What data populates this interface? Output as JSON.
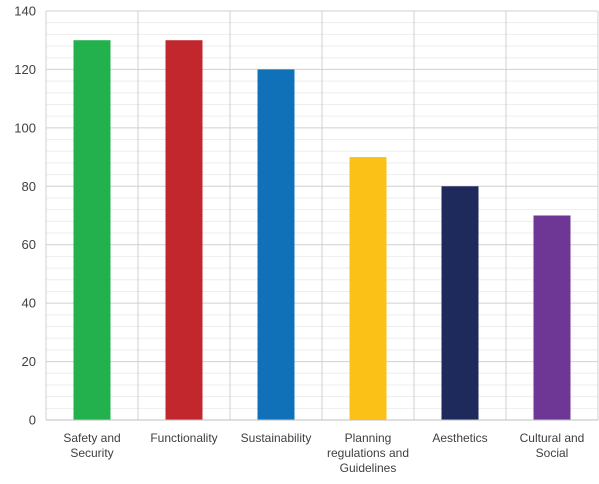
{
  "chart_data": {
    "type": "bar",
    "categories": [
      "Safety and Security",
      "Functionality",
      "Sustainability",
      "Planning regulations and Guidelines",
      "Aesthetics",
      "Cultural and Social"
    ],
    "category_label_lines": [
      [
        "Safety and",
        "Security"
      ],
      [
        "Functionality"
      ],
      [
        "Sustainability"
      ],
      [
        "Planning",
        "regulations and",
        "Guidelines"
      ],
      [
        "Aesthetics"
      ],
      [
        "Cultural and",
        "Social"
      ]
    ],
    "values": [
      130,
      130,
      120,
      90,
      80,
      70
    ],
    "colors": [
      "#22b14c",
      "#c1272d",
      "#1070b8",
      "#fcc116",
      "#1f2a5c",
      "#6e3796"
    ],
    "y_ticks": [
      0,
      20,
      40,
      60,
      80,
      100,
      120,
      140
    ],
    "ylim": [
      0,
      140
    ],
    "minor_grid_step": 4,
    "grid": true,
    "legend": false,
    "title": "",
    "xlabel": "",
    "ylabel": ""
  }
}
